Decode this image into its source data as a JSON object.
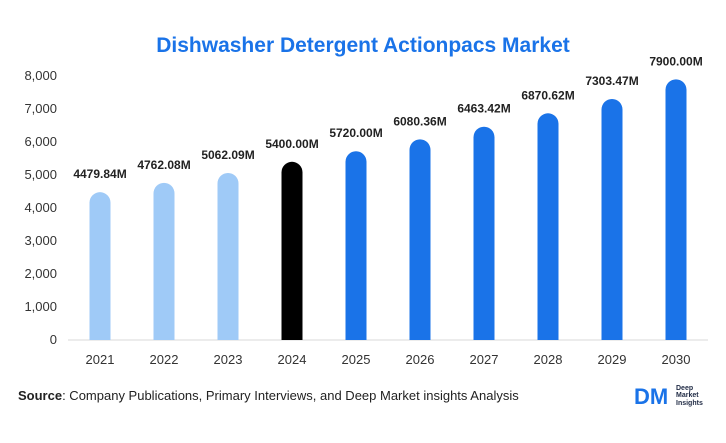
{
  "title": "Dishwasher Detergent Actionpacs Market",
  "chart_data": {
    "type": "bar",
    "title": "Dishwasher Detergent Actionpacs Market",
    "categories": [
      "2021",
      "2022",
      "2023",
      "2024",
      "2025",
      "2026",
      "2027",
      "2028",
      "2029",
      "2030"
    ],
    "values": [
      4479.84,
      4762.08,
      5062.09,
      5400.0,
      5720.0,
      6080.36,
      6463.42,
      6870.62,
      7303.47,
      7900.0
    ],
    "data_labels": [
      "4479.84M",
      "4762.08M",
      "5062.09M",
      "5400.00M",
      "5720.00M",
      "6080.36M",
      "6463.42M",
      "6870.62M",
      "7303.47M",
      "7900.00M"
    ],
    "bar_colors": [
      "#9fcaf7",
      "#9fcaf7",
      "#9fcaf7",
      "#000000",
      "#1a73e8",
      "#1a73e8",
      "#1a73e8",
      "#1a73e8",
      "#1a73e8",
      "#1a73e8"
    ],
    "y_ticks": [
      "0",
      "1,000",
      "2,000",
      "3,000",
      "4,000",
      "5,000",
      "6,000",
      "7,000",
      "8,000"
    ],
    "ylim": [
      0,
      8000
    ],
    "xlabel": "",
    "ylabel": "",
    "grid": false,
    "legend": "none"
  },
  "source": {
    "label": "Source",
    "text": ": Company Publications, Primary Interviews, and Deep Market insights Analysis"
  },
  "logo": {
    "mark": "DM",
    "line1": "Deep",
    "line2": "Market",
    "line3": "Insights"
  },
  "colors": {
    "title": "#1a73e8",
    "historical": "#9fcaf7",
    "base_year": "#000000",
    "forecast": "#1a73e8"
  }
}
